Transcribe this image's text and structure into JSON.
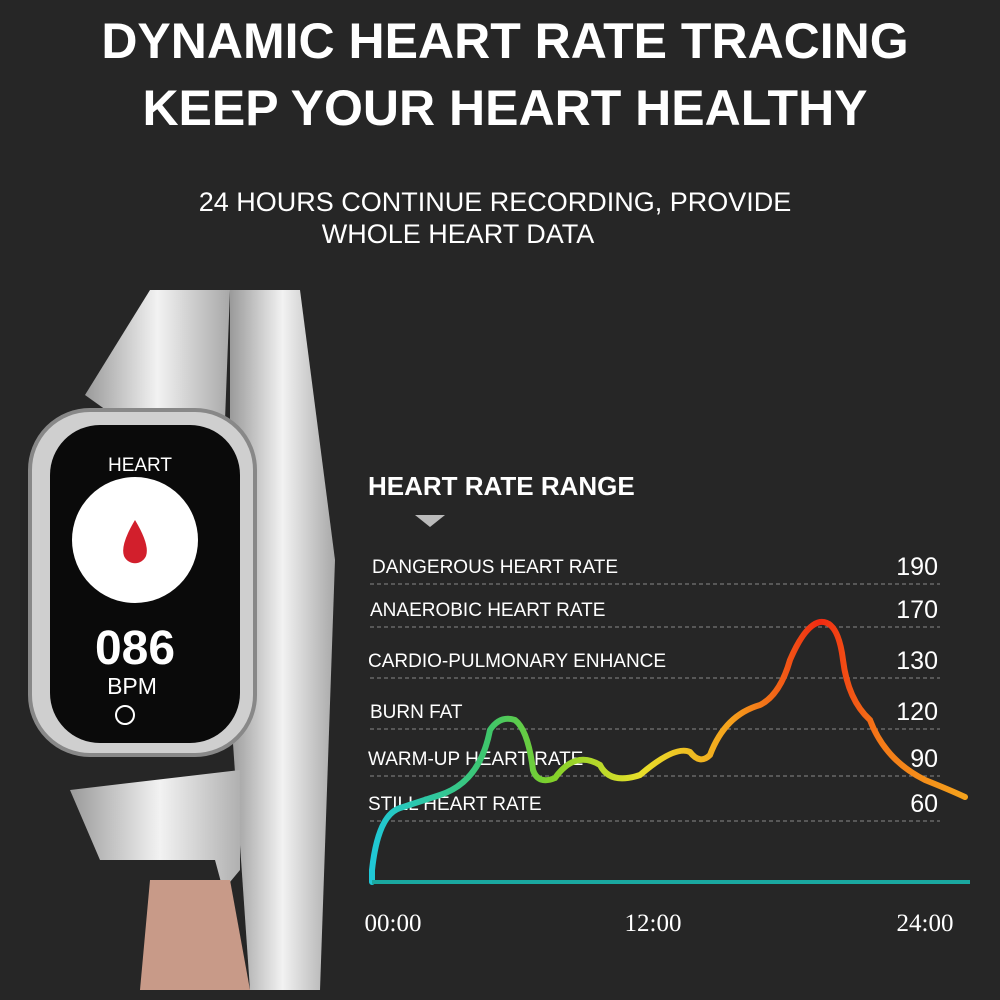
{
  "header": {
    "title_lines": [
      "DYNAMIC HEART RATE TRACING",
      "KEEP YOUR HEART HEALTHY"
    ],
    "subtitle_lines": [
      "24 HOURS CONTINUE RECORDING, PROVIDE",
      "WHOLE HEART DATA"
    ]
  },
  "watch": {
    "screen_title": "HEART",
    "reading": "086",
    "unit": "BPM"
  },
  "range": {
    "title": "HEART RATE RANGE",
    "rows": [
      {
        "label": "DANGEROUS HEART RATE",
        "value": 190
      },
      {
        "label": "ANAEROBIC HEART RATE",
        "value": 170
      },
      {
        "label": "CARDIO-PULMONARY ENHANCE",
        "value": 130
      },
      {
        "label": "BURN FAT",
        "value": 120
      },
      {
        "label": "WARM-UP HEART RATE",
        "value": 90
      },
      {
        "label": "STILL HEART RATE",
        "value": 60
      }
    ],
    "time_labels": [
      "00:00",
      "12:00",
      "24:00"
    ]
  }
}
